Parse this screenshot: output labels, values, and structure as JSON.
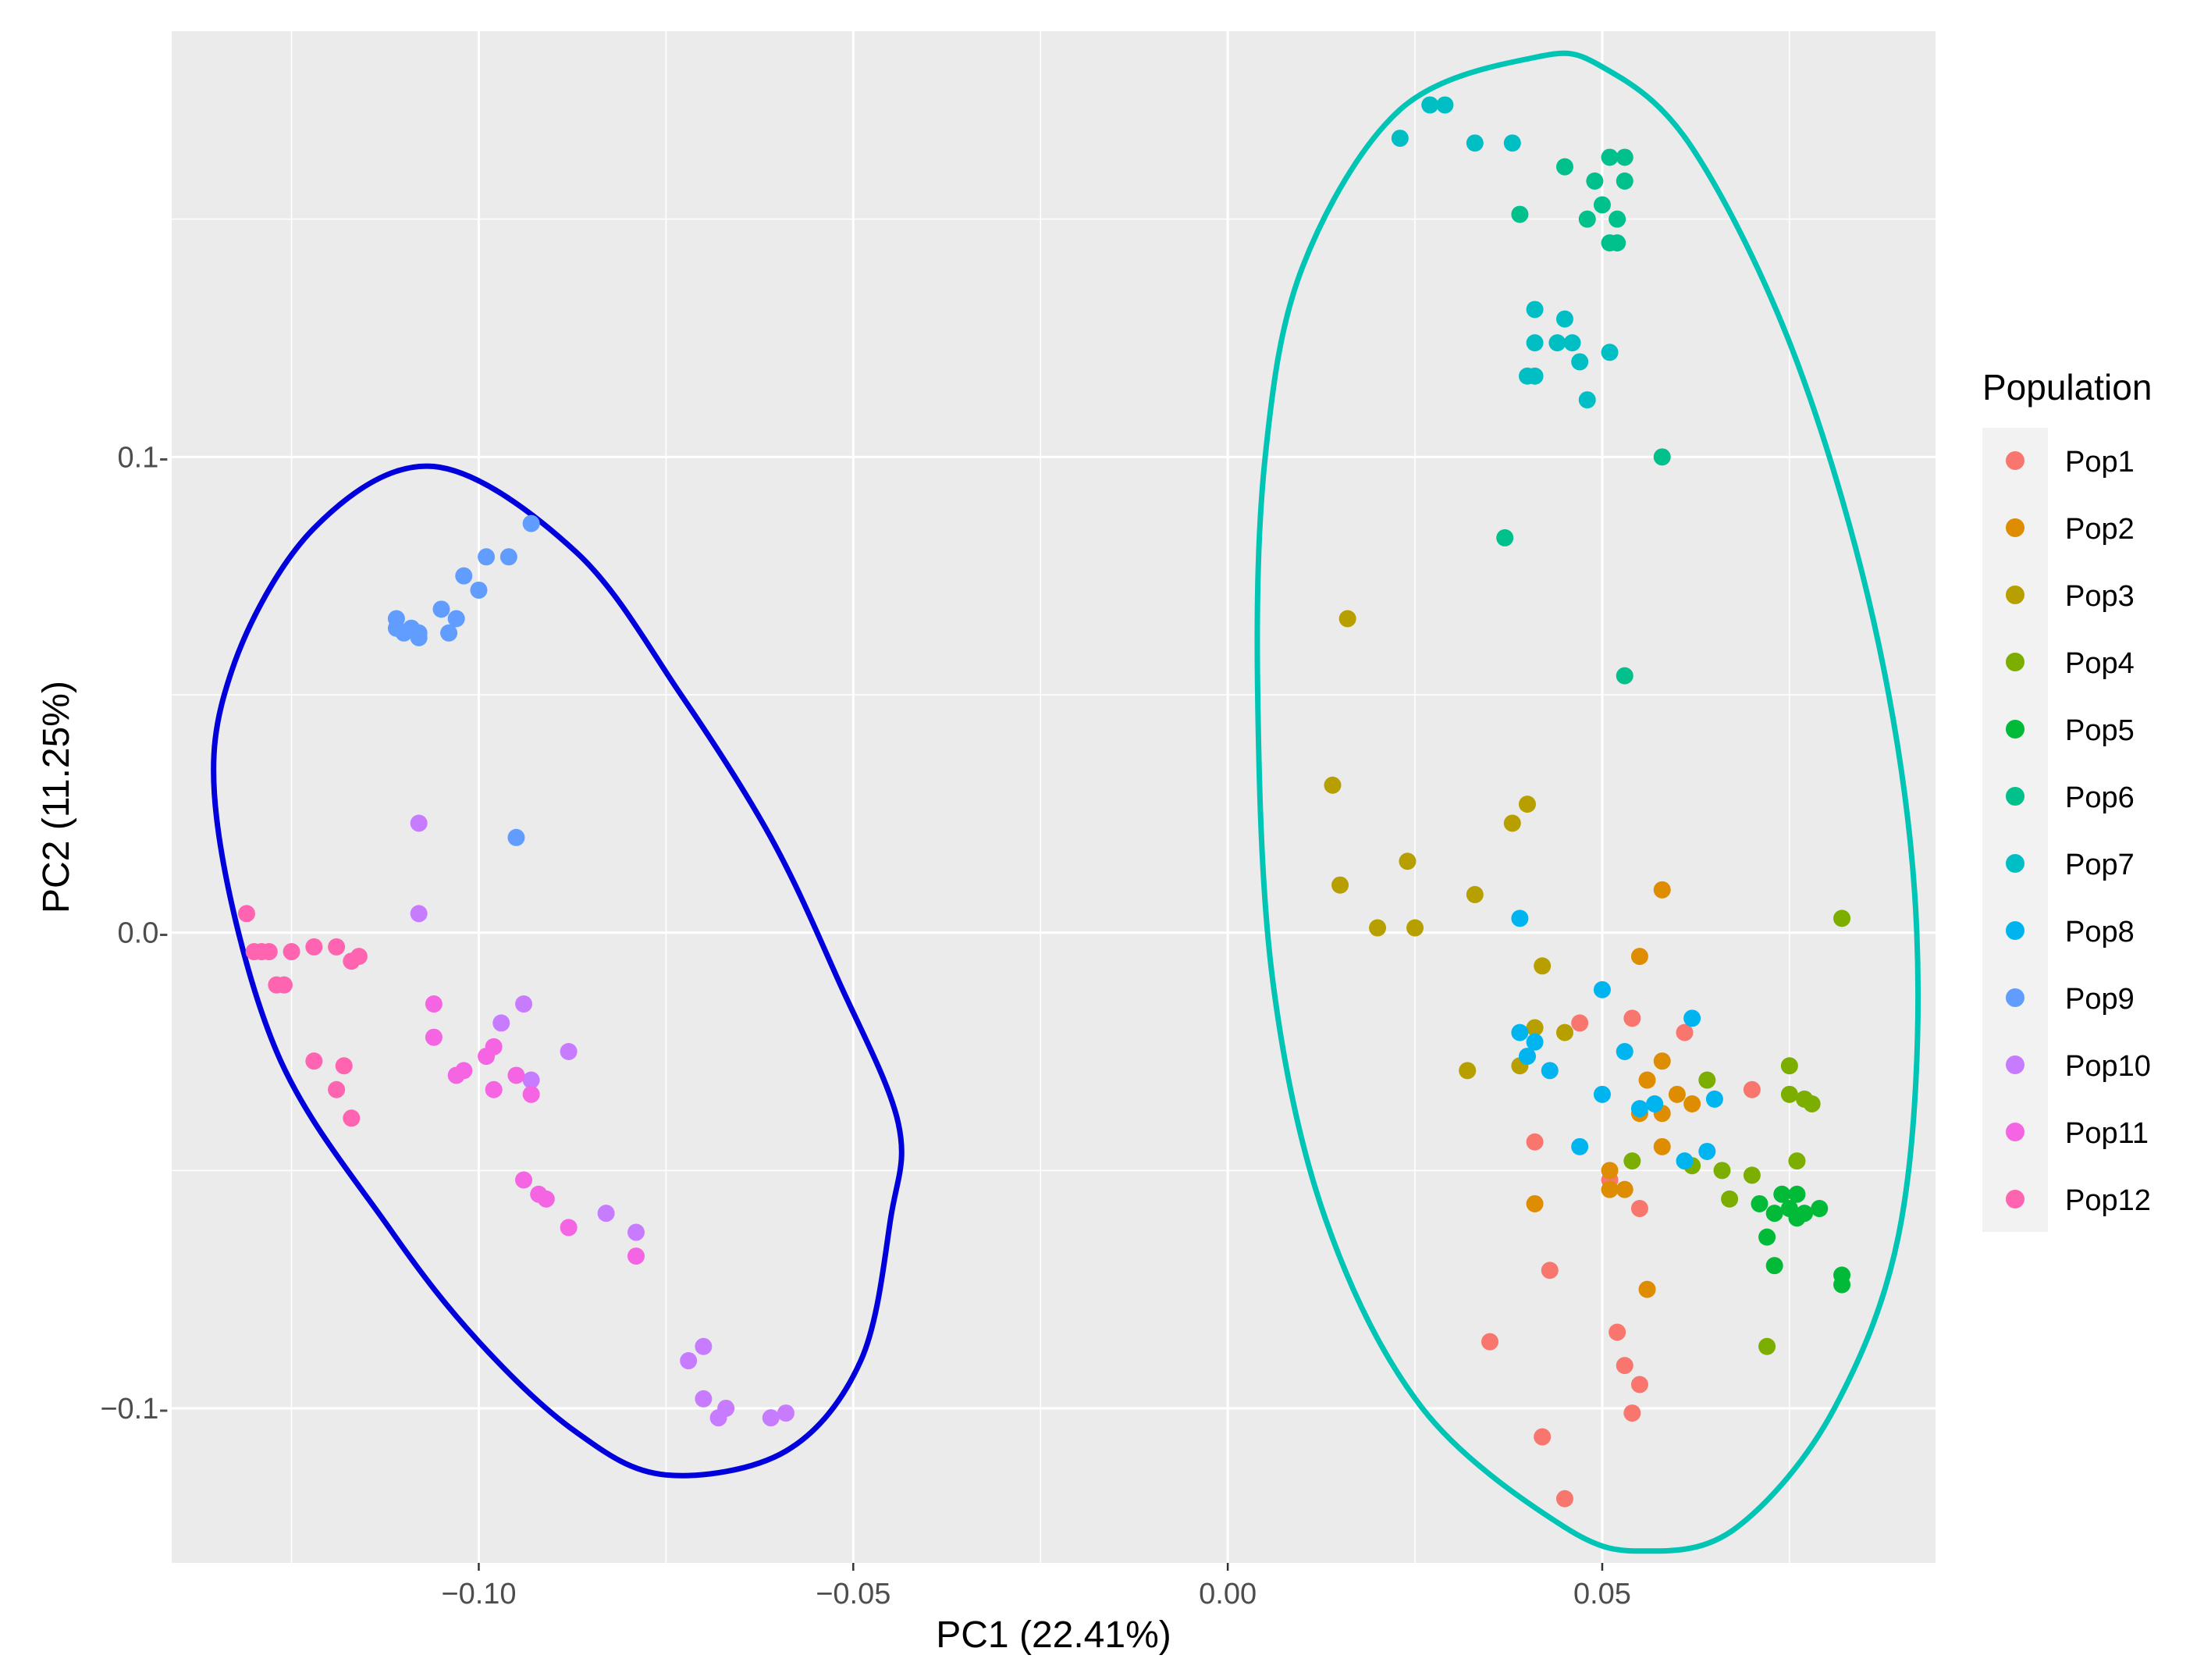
{
  "chart_data": {
    "type": "scatter",
    "title": "",
    "xlabel": "PC1 (22.41%)",
    "ylabel": "PC2 (11.25%)",
    "xlim": [
      -0.141,
      0.0945
    ],
    "ylim": [
      -0.1325,
      0.1895
    ],
    "xticks": [
      {
        "value": -0.1,
        "label": "−0.10"
      },
      {
        "value": -0.05,
        "label": "−0.05"
      },
      {
        "value": 0.0,
        "label": "0.00"
      },
      {
        "value": 0.05,
        "label": "0.05"
      }
    ],
    "yticks": [
      {
        "value": 0.1,
        "label": "0.1-"
      },
      {
        "value": 0.0,
        "label": "0.0-"
      },
      {
        "value": -0.1,
        "label": "−0.1-"
      }
    ],
    "grid": true,
    "legend_position": "right",
    "legend_title": "Population",
    "series": [
      {
        "name": "Pop1",
        "color": "#F8766D",
        "points": [
          [
            0.047,
            -0.019
          ],
          [
            0.054,
            -0.018
          ],
          [
            0.061,
            -0.021
          ],
          [
            0.07,
            -0.033
          ],
          [
            0.041,
            -0.044
          ],
          [
            0.051,
            -0.052
          ],
          [
            0.055,
            -0.058
          ],
          [
            0.043,
            -0.071
          ],
          [
            0.035,
            -0.086
          ],
          [
            0.052,
            -0.084
          ],
          [
            0.053,
            -0.091
          ],
          [
            0.055,
            -0.095
          ],
          [
            0.054,
            -0.101
          ],
          [
            0.042,
            -0.106
          ],
          [
            0.045,
            -0.119
          ]
        ]
      },
      {
        "name": "Pop2",
        "color": "#DE8C00",
        "points": [
          [
            0.058,
            0.009
          ],
          [
            0.055,
            -0.005
          ],
          [
            0.058,
            -0.027
          ],
          [
            0.056,
            -0.031
          ],
          [
            0.06,
            -0.034
          ],
          [
            0.062,
            -0.036
          ],
          [
            0.055,
            -0.038
          ],
          [
            0.058,
            -0.038
          ],
          [
            0.058,
            -0.045
          ],
          [
            0.051,
            -0.05
          ],
          [
            0.051,
            -0.054
          ],
          [
            0.053,
            -0.054
          ],
          [
            0.041,
            -0.057
          ],
          [
            0.056,
            -0.075
          ]
        ]
      },
      {
        "name": "Pop3",
        "color": "#B79F00",
        "points": [
          [
            0.016,
            0.066
          ],
          [
            0.014,
            0.031
          ],
          [
            0.04,
            0.027
          ],
          [
            0.038,
            0.023
          ],
          [
            0.024,
            0.015
          ],
          [
            0.015,
            0.01
          ],
          [
            0.033,
            0.008
          ],
          [
            0.02,
            0.001
          ],
          [
            0.025,
            0.001
          ],
          [
            0.042,
            -0.007
          ],
          [
            0.041,
            -0.02
          ],
          [
            0.045,
            -0.021
          ],
          [
            0.039,
            -0.028
          ],
          [
            0.032,
            -0.029
          ]
        ]
      },
      {
        "name": "Pop4",
        "color": "#7CAE00",
        "points": [
          [
            0.082,
            0.003
          ],
          [
            0.075,
            -0.028
          ],
          [
            0.064,
            -0.031
          ],
          [
            0.075,
            -0.034
          ],
          [
            0.077,
            -0.035
          ],
          [
            0.078,
            -0.036
          ],
          [
            0.054,
            -0.048
          ],
          [
            0.062,
            -0.049
          ],
          [
            0.066,
            -0.05
          ],
          [
            0.07,
            -0.051
          ],
          [
            0.076,
            -0.048
          ],
          [
            0.067,
            -0.056
          ],
          [
            0.072,
            -0.087
          ]
        ]
      },
      {
        "name": "Pop5",
        "color": "#00BA38",
        "points": [
          [
            0.074,
            -0.055
          ],
          [
            0.076,
            -0.055
          ],
          [
            0.071,
            -0.057
          ],
          [
            0.073,
            -0.059
          ],
          [
            0.075,
            -0.058
          ],
          [
            0.077,
            -0.059
          ],
          [
            0.079,
            -0.058
          ],
          [
            0.076,
            -0.06
          ],
          [
            0.072,
            -0.064
          ],
          [
            0.073,
            -0.07
          ],
          [
            0.082,
            -0.072
          ],
          [
            0.082,
            -0.074
          ]
        ]
      },
      {
        "name": "Pop6",
        "color": "#00C08B",
        "points": [
          [
            0.051,
            0.163
          ],
          [
            0.053,
            0.163
          ],
          [
            0.045,
            0.161
          ],
          [
            0.049,
            0.158
          ],
          [
            0.053,
            0.158
          ],
          [
            0.05,
            0.153
          ],
          [
            0.039,
            0.151
          ],
          [
            0.048,
            0.15
          ],
          [
            0.052,
            0.15
          ],
          [
            0.051,
            0.145
          ],
          [
            0.052,
            0.145
          ],
          [
            0.058,
            0.1
          ],
          [
            0.037,
            0.083
          ],
          [
            0.053,
            0.054
          ]
        ]
      },
      {
        "name": "Pop7",
        "color": "#00BFC4",
        "points": [
          [
            0.027,
            0.174
          ],
          [
            0.029,
            0.174
          ],
          [
            0.023,
            0.167
          ],
          [
            0.033,
            0.166
          ],
          [
            0.038,
            0.166
          ],
          [
            0.041,
            0.131
          ],
          [
            0.045,
            0.129
          ],
          [
            0.041,
            0.124
          ],
          [
            0.044,
            0.124
          ],
          [
            0.046,
            0.124
          ],
          [
            0.051,
            0.122
          ],
          [
            0.047,
            0.12
          ],
          [
            0.04,
            0.117
          ],
          [
            0.041,
            0.117
          ],
          [
            0.048,
            0.112
          ]
        ]
      },
      {
        "name": "Pop8",
        "color": "#00B4F0",
        "points": [
          [
            0.039,
            0.003
          ],
          [
            0.05,
            -0.012
          ],
          [
            0.062,
            -0.018
          ],
          [
            0.039,
            -0.021
          ],
          [
            0.041,
            -0.023
          ],
          [
            0.053,
            -0.025
          ],
          [
            0.04,
            -0.026
          ],
          [
            0.043,
            -0.029
          ],
          [
            0.05,
            -0.034
          ],
          [
            0.065,
            -0.035
          ],
          [
            0.057,
            -0.036
          ],
          [
            0.055,
            -0.037
          ],
          [
            0.047,
            -0.045
          ],
          [
            0.064,
            -0.046
          ],
          [
            0.061,
            -0.048
          ]
        ]
      },
      {
        "name": "Pop9",
        "color": "#619CFF",
        "points": [
          [
            -0.093,
            0.086
          ],
          [
            -0.099,
            0.079
          ],
          [
            -0.096,
            0.079
          ],
          [
            -0.102,
            0.075
          ],
          [
            -0.1,
            0.072
          ],
          [
            -0.105,
            0.068
          ],
          [
            -0.103,
            0.066
          ],
          [
            -0.111,
            0.066
          ],
          [
            -0.111,
            0.064
          ],
          [
            -0.109,
            0.064
          ],
          [
            -0.108,
            0.063
          ],
          [
            -0.104,
            0.063
          ],
          [
            -0.11,
            0.063
          ],
          [
            -0.108,
            0.062
          ],
          [
            -0.095,
            0.02
          ]
        ]
      },
      {
        "name": "Pop10",
        "color": "#C77CFF",
        "points": [
          [
            -0.108,
            0.023
          ],
          [
            -0.108,
            0.004
          ],
          [
            -0.094,
            -0.015
          ],
          [
            -0.097,
            -0.019
          ],
          [
            -0.088,
            -0.025
          ],
          [
            -0.093,
            -0.031
          ],
          [
            -0.083,
            -0.059
          ],
          [
            -0.079,
            -0.063
          ],
          [
            -0.07,
            -0.087
          ],
          [
            -0.072,
            -0.09
          ],
          [
            -0.07,
            -0.098
          ],
          [
            -0.067,
            -0.1
          ],
          [
            -0.068,
            -0.102
          ],
          [
            -0.061,
            -0.102
          ],
          [
            -0.059,
            -0.101
          ]
        ]
      },
      {
        "name": "Pop11",
        "color": "#F564E3",
        "points": [
          [
            -0.106,
            -0.015
          ],
          [
            -0.106,
            -0.022
          ],
          [
            -0.098,
            -0.024
          ],
          [
            -0.103,
            -0.03
          ],
          [
            -0.099,
            -0.026
          ],
          [
            -0.095,
            -0.03
          ],
          [
            -0.093,
            -0.034
          ],
          [
            -0.102,
            -0.029
          ],
          [
            -0.098,
            -0.033
          ],
          [
            -0.094,
            -0.052
          ],
          [
            -0.092,
            -0.055
          ],
          [
            -0.091,
            -0.056
          ],
          [
            -0.088,
            -0.062
          ],
          [
            -0.079,
            -0.068
          ]
        ]
      },
      {
        "name": "Pop12",
        "color": "#FF64B0",
        "points": [
          [
            -0.131,
            0.004
          ],
          [
            -0.13,
            -0.004
          ],
          [
            -0.129,
            -0.004
          ],
          [
            -0.128,
            -0.004
          ],
          [
            -0.125,
            -0.004
          ],
          [
            -0.122,
            -0.003
          ],
          [
            -0.119,
            -0.003
          ],
          [
            -0.117,
            -0.006
          ],
          [
            -0.116,
            -0.005
          ],
          [
            -0.127,
            -0.011
          ],
          [
            -0.126,
            -0.011
          ],
          [
            -0.122,
            -0.027
          ],
          [
            -0.118,
            -0.028
          ],
          [
            -0.119,
            -0.033
          ],
          [
            -0.117,
            -0.039
          ]
        ]
      }
    ],
    "ellipses": [
      {
        "name": "left-cluster-ellipse",
        "color": "#0000DC",
        "points": [
          [
            -0.106,
            0.098
          ],
          [
            -0.122,
            0.085
          ],
          [
            -0.133,
            0.055
          ],
          [
            -0.135,
            0.024
          ],
          [
            -0.127,
            -0.025
          ],
          [
            -0.112,
            -0.062
          ],
          [
            -0.1,
            -0.086
          ],
          [
            -0.087,
            -0.105
          ],
          [
            -0.075,
            -0.114
          ],
          [
            -0.059,
            -0.109
          ],
          [
            -0.049,
            -0.09
          ],
          [
            -0.045,
            -0.06
          ],
          [
            -0.044,
            -0.04
          ],
          [
            -0.052,
            -0.01
          ],
          [
            -0.061,
            0.02
          ],
          [
            -0.073,
            0.05
          ],
          [
            -0.087,
            0.08
          ]
        ]
      },
      {
        "name": "right-cluster-ellipse",
        "color": "#00C5B4",
        "points": [
          [
            0.041,
            0.184
          ],
          [
            0.023,
            0.173
          ],
          [
            0.01,
            0.14
          ],
          [
            0.005,
            0.1
          ],
          [
            0.004,
            0.05
          ],
          [
            0.006,
            -0.01
          ],
          [
            0.013,
            -0.06
          ],
          [
            0.026,
            -0.1
          ],
          [
            0.045,
            -0.125
          ],
          [
            0.056,
            -0.13
          ],
          [
            0.068,
            -0.125
          ],
          [
            0.081,
            -0.1
          ],
          [
            0.09,
            -0.06
          ],
          [
            0.092,
            0.0
          ],
          [
            0.087,
            0.06
          ],
          [
            0.076,
            0.12
          ],
          [
            0.062,
            0.165
          ],
          [
            0.05,
            0.182
          ]
        ]
      }
    ]
  }
}
